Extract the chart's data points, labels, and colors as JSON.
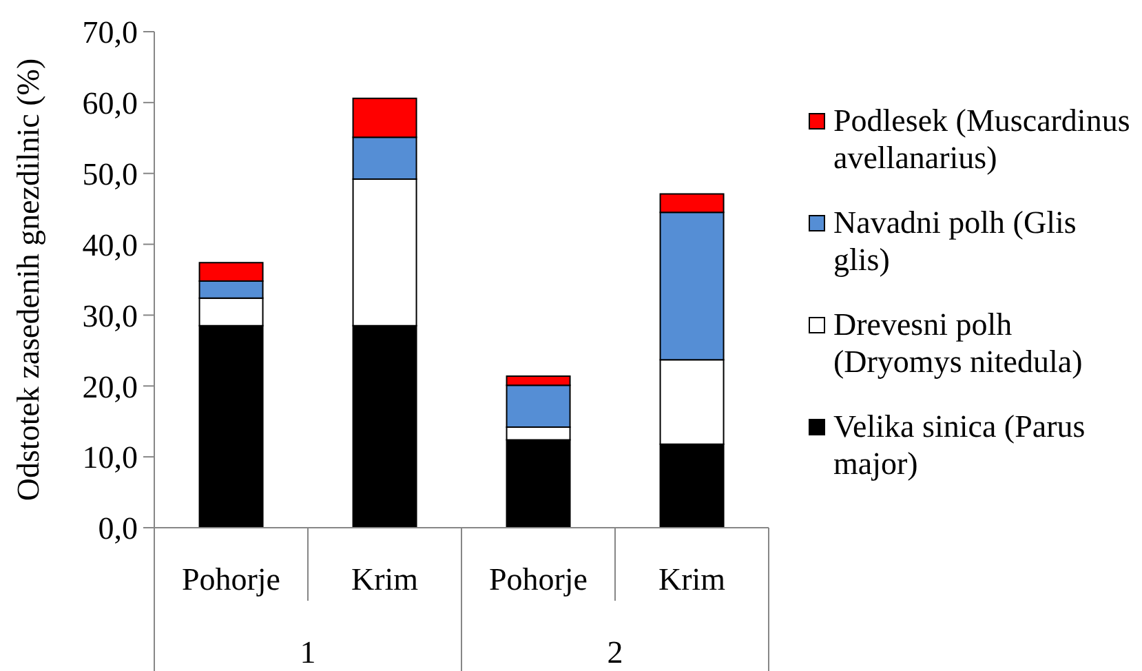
{
  "chart_data": {
    "type": "bar",
    "stacked": true,
    "ylabel": "Odstotek zasedenih gnezdilnic (%)",
    "categories": [
      "Pohorje",
      "Krim",
      "Pohorje",
      "Krim"
    ],
    "annotations": [
      "1",
      "2"
    ],
    "series": [
      {
        "name": "Velika sinica (Parus major)",
        "color": "#000000",
        "values": [
          28.5,
          28.5,
          12.4,
          11.8
        ]
      },
      {
        "name": "Drevesni polh (Dryomys nitedula)",
        "color": "#ffffff",
        "values": [
          3.9,
          20.7,
          1.8,
          11.9
        ]
      },
      {
        "name": "Navadni polh (Glis glis)",
        "color": "#558ed5",
        "values": [
          2.4,
          5.9,
          5.9,
          20.8
        ]
      },
      {
        "name": "Podlesek (Muscardinus avellanarius)",
        "color": "#ff0000",
        "values": [
          2.6,
          5.5,
          1.3,
          2.6
        ]
      }
    ],
    "ylim": [
      0,
      70
    ],
    "yticks": [
      {
        "value": 0,
        "label": "0,0"
      },
      {
        "value": 10,
        "label": "10,0"
      },
      {
        "value": 20,
        "label": "20,0"
      },
      {
        "value": 30,
        "label": "30,0"
      },
      {
        "value": 40,
        "label": "40,0"
      },
      {
        "value": 50,
        "label": "50,0"
      },
      {
        "value": 60,
        "label": "60,0"
      },
      {
        "value": 70,
        "label": "70,0"
      }
    ],
    "legend": "right"
  }
}
